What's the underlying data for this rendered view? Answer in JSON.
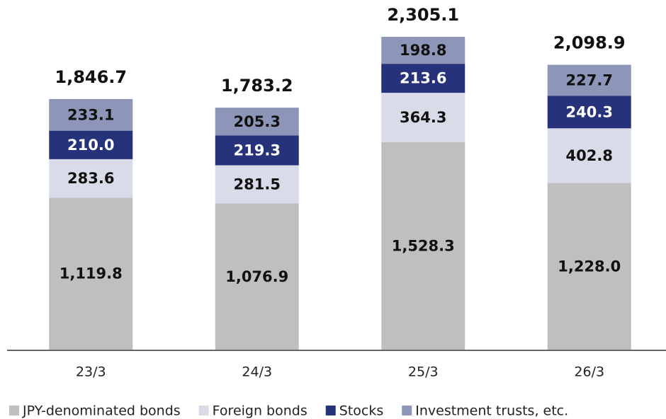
{
  "chart_data": {
    "type": "stacked_bar",
    "categories": [
      "23/3",
      "24/3",
      "25/3",
      "26/3"
    ],
    "series": [
      {
        "name": "JPY-denominated bonds",
        "color": "#bfbfbf",
        "values": [
          1119.8,
          1076.9,
          1528.3,
          1228.0
        ],
        "value_labels": [
          "1,119.8",
          "1,076.9",
          "1,528.3",
          "1,228.0"
        ]
      },
      {
        "name": "Foreign bonds",
        "color": "#d9dbe8",
        "values": [
          283.6,
          281.5,
          364.3,
          402.8
        ],
        "value_labels": [
          "283.6",
          "281.5",
          "364.3",
          "402.8"
        ]
      },
      {
        "name": "Stocks",
        "color": "#26337a",
        "values": [
          210.0,
          219.3,
          213.6,
          240.3
        ],
        "value_labels": [
          "210.0",
          "219.3",
          "213.6",
          "240.3"
        ]
      },
      {
        "name": "Investment trusts, etc.",
        "color": "#8d96b8",
        "values": [
          233.1,
          205.3,
          198.8,
          227.7
        ],
        "value_labels": [
          "233.1",
          "205.3",
          "198.8",
          "227.7"
        ]
      }
    ],
    "totals": [
      1846.7,
      1783.2,
      2305.1,
      2098.9
    ],
    "total_labels": [
      "1,846.7",
      "1,783.2",
      "2,305.1",
      "2,098.9"
    ]
  }
}
